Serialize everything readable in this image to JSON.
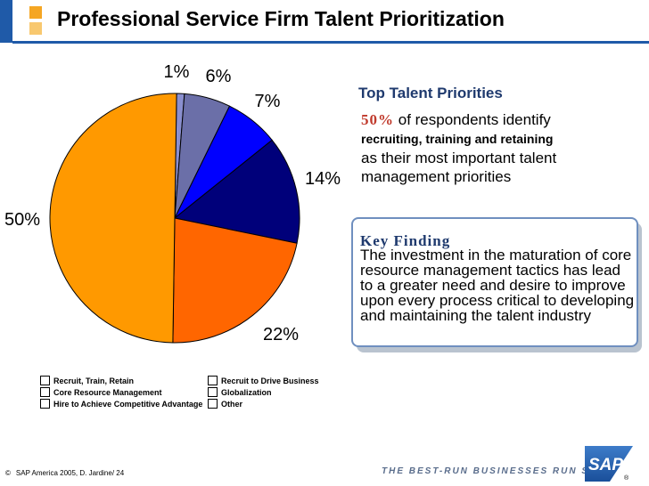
{
  "title": "Professional Service Firm Talent Prioritization",
  "chart_data": {
    "type": "pie",
    "slices": [
      {
        "label": "Recruit to Drive Business",
        "value": 1,
        "display": "1%",
        "color": "#8a8fcf"
      },
      {
        "label": "Globalization",
        "value": 6,
        "display": "6%",
        "color": "#6b6fa8"
      },
      {
        "label": "Other",
        "value": 7,
        "display": "7%",
        "color": "#0000ff"
      },
      {
        "label": "Hire to Achieve Competitive Advantage",
        "value": 14,
        "display": "14%",
        "color": "#00007a"
      },
      {
        "label": "Core Resource Management",
        "value": 22,
        "display": "22%",
        "color": "#ff6600"
      },
      {
        "label": "Recruit, Train, Retain",
        "value": 50,
        "display": "50%",
        "color": "#ff9900"
      }
    ],
    "legend": {
      "left": [
        "Recruit, Train, Retain",
        "Core Resource Management",
        "Hire to Achieve Competitive Advantage"
      ],
      "right": [
        "Recruit to Drive Business",
        "Globalization",
        "Other"
      ]
    }
  },
  "top_priorities": {
    "title": "Top Talent Priorities",
    "pct": "50%",
    "line1_rest": "of respondents identify",
    "bold_phrase": "recruiting, training and retaining",
    "rest": "as their most important talent management priorities"
  },
  "key_finding": {
    "title": "Key Finding",
    "body": "The investment in the maturation of core resource management tactics has lead to a greater need and desire to improve upon every process critical to developing and maintaining the talent industry"
  },
  "footer": {
    "copyright_symbol": "©",
    "copyright": "SAP America 2005, D. Jardine/ 24",
    "tagline": "THE BEST-RUN BUSINESSES RUN SAP",
    "logo_text": "SAP"
  }
}
